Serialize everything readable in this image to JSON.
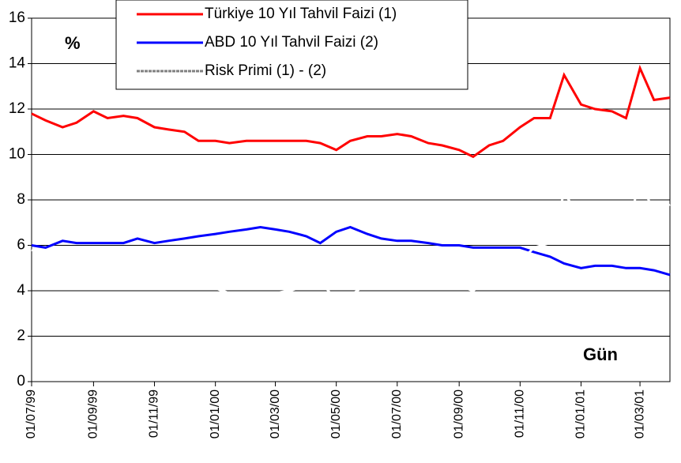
{
  "chart_data": {
    "type": "line",
    "y_unit_label": "%",
    "x_label": "Gün",
    "x": [
      "01/07/99",
      "15/07/99",
      "01/08/99",
      "15/08/99",
      "01/09/99",
      "15/09/99",
      "01/10/99",
      "15/10/99",
      "01/11/99",
      "15/11/99",
      "01/12/99",
      "15/12/99",
      "01/01/00",
      "15/01/00",
      "01/02/00",
      "15/02/00",
      "01/03/00",
      "15/03/00",
      "01/04/00",
      "15/04/00",
      "01/05/00",
      "15/05/00",
      "01/06/00",
      "15/06/00",
      "01/07/00",
      "15/07/00",
      "01/08/00",
      "15/08/00",
      "01/09/00",
      "15/09/00",
      "01/10/00",
      "15/10/00",
      "01/11/00",
      "15/11/00",
      "01/12/00",
      "15/12/00",
      "01/01/01",
      "15/01/01",
      "01/02/01",
      "15/02/01",
      "01/03/01",
      "15/03/01",
      "31/03/01"
    ],
    "series": [
      {
        "name": "Türkiye 10 Yıl  Tahvil Faizi (1)",
        "color": "#ff0000",
        "legend_color": "#ff0000",
        "values": [
          11.8,
          11.5,
          11.2,
          11.4,
          11.9,
          11.6,
          11.7,
          11.6,
          11.2,
          11.1,
          11.0,
          10.6,
          10.6,
          10.5,
          10.6,
          10.6,
          10.6,
          10.6,
          10.6,
          10.5,
          10.2,
          10.6,
          10.8,
          10.8,
          10.9,
          10.8,
          10.5,
          10.4,
          10.2,
          9.9,
          10.4,
          10.6,
          11.2,
          11.6,
          11.6,
          13.5,
          12.2,
          12.0,
          11.9,
          11.6,
          13.8,
          12.4,
          12.5
        ]
      },
      {
        "name": "ABD 10 Yıl  Tahvil Faizi (2)",
        "color": "#0000ff",
        "legend_color": "#0000ff",
        "values": [
          6.0,
          5.9,
          6.2,
          6.1,
          6.1,
          6.1,
          6.1,
          6.3,
          6.1,
          6.2,
          6.3,
          6.4,
          6.5,
          6.6,
          6.7,
          6.8,
          6.7,
          6.6,
          6.4,
          6.1,
          6.6,
          6.8,
          6.5,
          6.3,
          6.2,
          6.2,
          6.1,
          6.0,
          6.0,
          5.9,
          5.9,
          5.9,
          5.9,
          5.7,
          5.5,
          5.2,
          5.0,
          5.1,
          5.1,
          5.0,
          5.0,
          4.9,
          4.7
        ]
      },
      {
        "name": "Risk Primi (1) - (2)",
        "color": "#ffffff",
        "legend_color": "#808080",
        "values": [
          5.8,
          5.6,
          5.0,
          5.3,
          5.8,
          5.5,
          5.6,
          5.3,
          5.1,
          4.9,
          4.7,
          4.2,
          4.1,
          3.9,
          3.9,
          3.8,
          3.9,
          4.0,
          4.2,
          4.4,
          3.6,
          3.8,
          4.3,
          4.5,
          4.7,
          4.6,
          4.4,
          4.4,
          4.2,
          4.0,
          4.5,
          4.7,
          5.3,
          5.9,
          6.1,
          8.3,
          7.2,
          6.9,
          6.8,
          6.6,
          8.8,
          7.5,
          7.8
        ]
      }
    ],
    "xlim": [
      "01/07/99",
      "31/03/01"
    ],
    "xticks": [
      "01/07/99",
      "01/09/99",
      "01/11/99",
      "01/01/00",
      "01/03/00",
      "01/05/00",
      "01/07/00",
      "01/09/00",
      "01/11/00",
      "01/01/01",
      "01/03/01"
    ],
    "ylim": [
      0,
      16
    ],
    "yticks": [
      0,
      2,
      4,
      6,
      8,
      10,
      12,
      14,
      16
    ],
    "grid": true
  }
}
